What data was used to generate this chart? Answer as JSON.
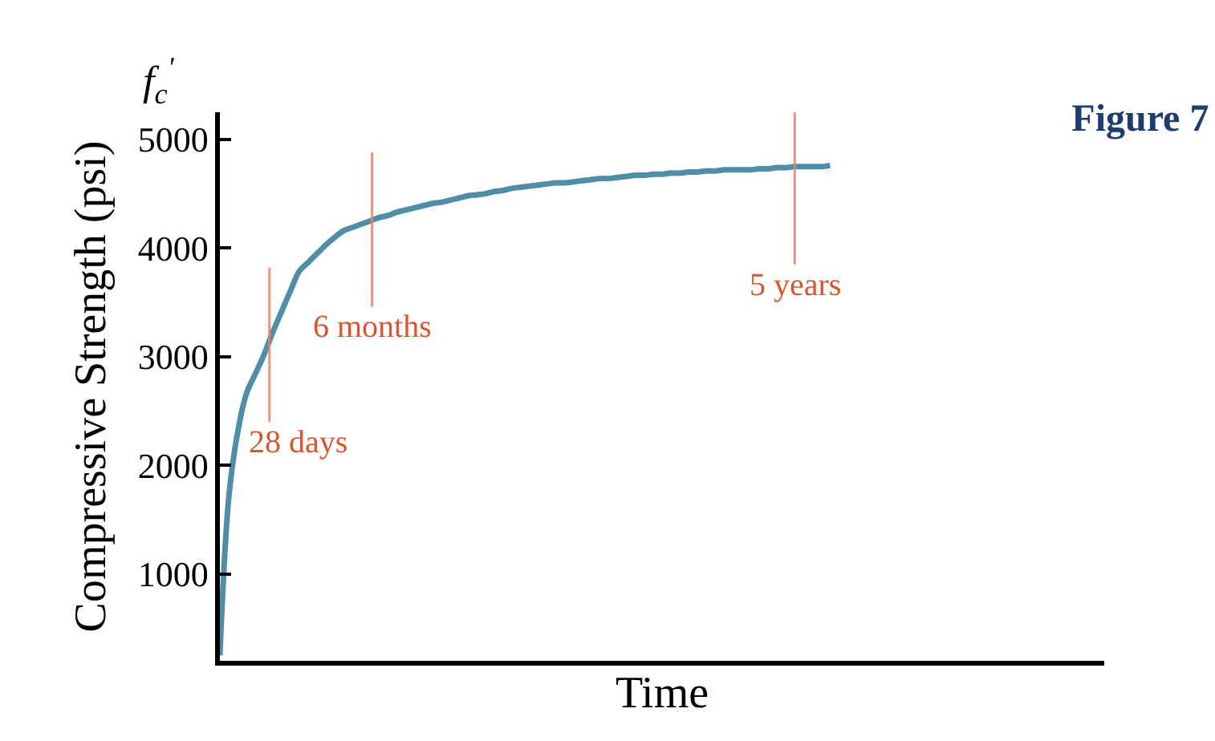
{
  "chart_data": {
    "type": "line",
    "title": "Figure 7",
    "xlabel": "Time",
    "ylabel": "Compressive Strength (psi)",
    "annotations": [
      "f$_{c}$$^{'}$",
      "28 days",
      "6 months",
      "5 years"
    ],
    "categories": [
      null,
      null,
      null,
      null,
      null,
      null,
      null,
      null,
      null,
      null,
      null,
      null,
      null,
      null,
      null,
      null,
      null,
      null,
      null,
      null,
      null,
      null,
      null,
      null,
      null,
      null,
      null,
      null,
      null,
      null,
      null,
      null,
      null,
      null,
      null,
      null,
      null,
      null,
      null,
      null,
      null,
      null,
      null,
      null,
      null,
      null,
      null,
      null,
      null,
      null,
      null,
      null,
      null,
      null,
      null,
      null,
      null,
      null,
      null,
      null,
      null,
      null,
      null,
      null,
      null,
      null,
      null,
      null,
      null,
      null,
      null,
      null,
      null,
      null,
      null,
      null,
      null,
      null,
      null,
      null,
      null,
      null,
      null,
      null,
      null,
      null,
      null,
      null,
      null,
      null,
      null,
      null,
      null,
      null,
      null,
      null,
      null,
      null,
      null,
      null,
      null
    ],
    "series": [
      {
        "color": "#4f8ea6",
        "values": [
          250,
          1700,
          2300,
          2660,
          2840,
          3020,
          3230,
          3420,
          3610,
          3790,
          3870,
          3950,
          4030,
          4100,
          4160,
          4190,
          4220,
          4250,
          4280,
          4300,
          4330,
          4350,
          4370,
          4390,
          4410,
          4420,
          4440,
          4460,
          4480,
          4490,
          4500,
          4520,
          4530,
          4550,
          4560,
          4570,
          4580,
          4590,
          4600,
          4600,
          4610,
          4620,
          4630,
          4640,
          4640,
          4650,
          4660,
          4670,
          4670,
          4680,
          4680,
          4690,
          4690,
          4700,
          4700,
          4710,
          4710,
          4720,
          4720,
          4720,
          4720,
          4730,
          4730,
          4740,
          4740,
          4750,
          4750,
          4750,
          4750,
          4760,
          null,
          null,
          null,
          null,
          null,
          null,
          null,
          null,
          null,
          null,
          null,
          null,
          null,
          null,
          null,
          null,
          null,
          null,
          null,
          null,
          null,
          null,
          null,
          null,
          null,
          null,
          null,
          null,
          null,
          null,
          null
        ]
      }
    ],
    "ylim": [
      200,
      5250
    ],
    "yticks": [
      1000,
      2000,
      3000,
      4000,
      5000
    ],
    "tick_labels": "y",
    "marker": "none",
    "line_style": "solid"
  }
}
